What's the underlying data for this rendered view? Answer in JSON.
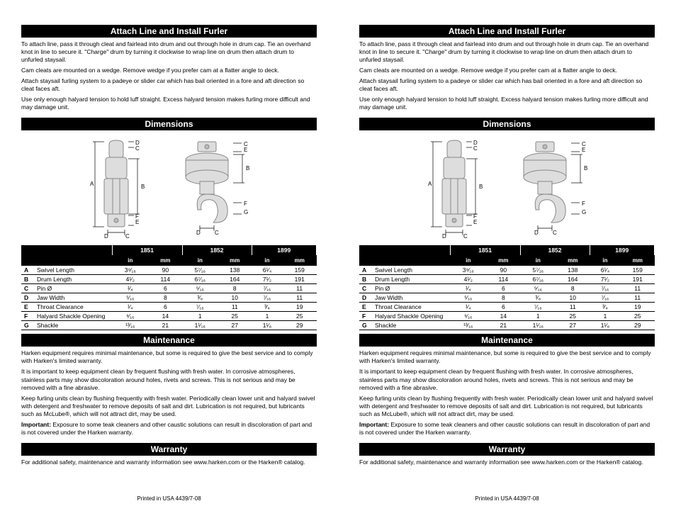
{
  "sections": {
    "attach": {
      "title": "Attach Line and Install Furler",
      "paragraphs": [
        "To attach line, pass it through cleat and fairlead into drum and out through hole in drum cap. Tie an overhand knot in line to secure it. \"Charge\" drum by turning it clockwise to wrap line on drum then attach drum to unfurled staysail.",
        "Cam cleats are mounted on a wedge. Remove wedge if you prefer cam at a flatter angle to deck.",
        "Attach staysail furling system to a padeye or slider car which has bail oriented in a fore and aft direction so cleat faces aft.",
        "Use only enough halyard tension to hold luff straight. Excess halyard tension makes furling more difficult and may damage unit."
      ]
    },
    "dimensions": {
      "title": "Dimensions",
      "models": [
        "1851",
        "1852",
        "1899"
      ],
      "units": [
        "in",
        "mm",
        "in",
        "mm",
        "in",
        "mm"
      ],
      "rows": [
        {
          "key": "A",
          "name": "Swivel Length",
          "vals": [
            "3⁹⁄₁₆",
            "90",
            "5⁷⁄₁₆",
            "138",
            "6¹⁄₄",
            "159"
          ]
        },
        {
          "key": "B",
          "name": "Drum Length",
          "vals": [
            "4¹⁄₂",
            "114",
            "6⁷⁄₁₆",
            "164",
            "7¹⁄₂",
            "191"
          ]
        },
        {
          "key": "C",
          "name": "Pin Ø",
          "vals": [
            "¹⁄₄",
            "6",
            "⁵⁄₁₆",
            "8",
            "⁷⁄₁₆",
            "11"
          ]
        },
        {
          "key": "D",
          "name": "Jaw Width",
          "vals": [
            "⁵⁄₁₆",
            "8",
            "³⁄₈",
            "10",
            "⁷⁄₁₆",
            "11"
          ]
        },
        {
          "key": "E",
          "name": "Throat Clearance",
          "vals": [
            "¹⁄₄",
            "6",
            "⁷⁄₁₆",
            "11",
            "³⁄₄",
            "19"
          ]
        },
        {
          "key": "F",
          "name": "Halyard Shackle Opening",
          "vals": [
            "⁹⁄₁₆",
            "14",
            "1",
            "25",
            "1",
            "25"
          ]
        },
        {
          "key": "G",
          "name": "Shackle",
          "vals": [
            "¹³⁄₁₆",
            "21",
            "1¹⁄₁₆",
            "27",
            "1¹⁄₈",
            "29"
          ]
        }
      ]
    },
    "maintenance": {
      "title": "Maintenance",
      "paragraphs": [
        "Harken equipment requires minimal maintenance, but some is required to give the best service and to comply with Harken's limited warranty.",
        "It is important to keep equipment clean by frequent flushing with fresh water. In corrosive atmospheres, stainless parts may show discoloration around holes, rivets and screws. This is not serious and may be removed with a fine abrasive.",
        "Keep furling units clean by flushing frequently with fresh water. Periodically clean lower unit and halyard swivel with detergent and freshwater to remove deposits of salt and dirt. Lubrication is not required, but lubricants such as McLube®, which will not attract dirt, may be used.",
        "Important: Exposure to some teak cleaners and other caustic solutions can result in discoloration of part and is not covered under the Harken warranty."
      ]
    },
    "warranty": {
      "title": "Warranty",
      "text": "For additional safety, maintenance and warranty information see www.harken.com or the Harken® catalog."
    },
    "footer": "Printed in USA    4439/7-08"
  },
  "diagram": {
    "labels": [
      "A",
      "B",
      "C",
      "D",
      "E",
      "F",
      "G"
    ],
    "colors": {
      "stroke": "#888",
      "fill": "#ccc",
      "text": "#000"
    }
  }
}
